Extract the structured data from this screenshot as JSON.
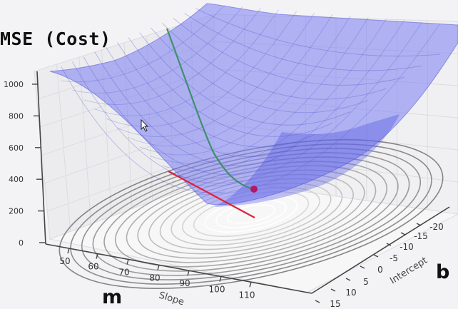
{
  "chart_data": {
    "type": "surface",
    "title": "MSE (Cost)",
    "z_ticks": [
      "0",
      "200",
      "400",
      "600",
      "800",
      "1000"
    ],
    "slope_ticks": [
      "50",
      "60",
      "70",
      "80",
      "90",
      "100",
      "110"
    ],
    "intercept_ticks": [
      "-20",
      "-15",
      "-10",
      "-5",
      "0",
      "5",
      "10",
      "15"
    ],
    "xlabel": "Slope",
    "ylabel": "Intercept",
    "slope_range": [
      45,
      112
    ],
    "intercept_range": [
      -23,
      15
    ],
    "z_range": [
      0,
      1050
    ],
    "grid": true,
    "surface_color": "#6b6ff0",
    "path_color": "#3f8f6c",
    "projection_color": "#e0203a",
    "point_color": "#b0186a",
    "point": {
      "slope": 82,
      "intercept": -2,
      "cost": 220
    }
  },
  "labels": {
    "m": "m",
    "b": "b"
  }
}
